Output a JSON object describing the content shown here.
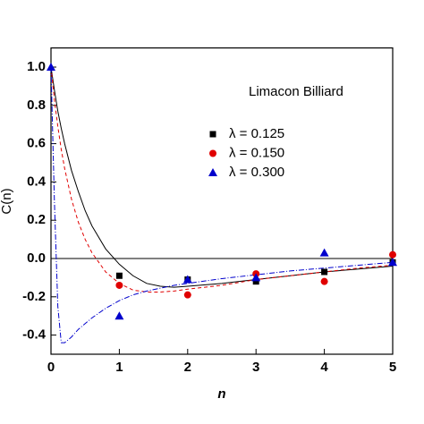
{
  "chart_data": {
    "type": "scatter",
    "annotation": "Limacon Billiard",
    "xlabel": "n",
    "ylabel": "C(n)",
    "xlim": [
      0,
      5
    ],
    "ylim": [
      -0.5,
      1.1
    ],
    "xticks": [
      0,
      1,
      2,
      3,
      4,
      5
    ],
    "yticks": [
      -0.4,
      -0.2,
      {
        "value": 0,
        "label": "0.0"
      },
      0.2,
      0.4,
      0.6,
      0.8,
      {
        "value": 1,
        "label": "1.0"
      }
    ],
    "hline": 0,
    "series": [
      {
        "name": "λ = 0.125",
        "color": "#000000",
        "marker": "square",
        "x": [
          1,
          2,
          3,
          4,
          5
        ],
        "values": [
          -0.09,
          -0.11,
          -0.12,
          -0.07,
          -0.02
        ]
      },
      {
        "name": "λ = 0.150",
        "color": "#e00000",
        "marker": "circle",
        "x": [
          1,
          2,
          3,
          4,
          5
        ],
        "values": [
          -0.14,
          -0.19,
          -0.08,
          -0.12,
          0.02
        ]
      },
      {
        "name": "λ = 0.300",
        "color": "#0000cc",
        "marker": "triangle",
        "x": [
          0,
          1,
          2,
          3,
          4,
          5
        ],
        "values": [
          1.0,
          -0.3,
          -0.11,
          -0.1,
          0.03,
          -0.02
        ]
      }
    ],
    "fits": [
      {
        "color": "#000000",
        "dash": "none",
        "x": [
          0,
          0.05,
          0.1,
          0.15,
          0.2,
          0.3,
          0.4,
          0.5,
          0.6,
          0.8,
          1.0,
          1.2,
          1.4,
          1.6,
          1.8,
          2,
          2.5,
          3,
          3.5,
          4,
          4.5,
          5
        ],
        "values": [
          1.0,
          0.88,
          0.77,
          0.68,
          0.6,
          0.46,
          0.35,
          0.25,
          0.17,
          0.05,
          -0.03,
          -0.09,
          -0.13,
          -0.145,
          -0.15,
          -0.145,
          -0.13,
          -0.11,
          -0.09,
          -0.07,
          -0.055,
          -0.04
        ]
      },
      {
        "color": "#e00000",
        "dash": "4 3",
        "x": [
          0,
          0.05,
          0.1,
          0.15,
          0.2,
          0.3,
          0.4,
          0.5,
          0.6,
          0.8,
          1.0,
          1.2,
          1.4,
          1.6,
          1.8,
          2,
          2.5,
          3,
          3.5,
          4,
          4.5,
          5
        ],
        "values": [
          1.0,
          0.83,
          0.69,
          0.57,
          0.47,
          0.31,
          0.19,
          0.1,
          0.03,
          -0.07,
          -0.13,
          -0.165,
          -0.175,
          -0.175,
          -0.17,
          -0.16,
          -0.14,
          -0.11,
          -0.09,
          -0.07,
          -0.05,
          -0.035
        ]
      },
      {
        "color": "#0000cc",
        "dash": "6 2 1 2",
        "x": [
          0,
          0.05,
          0.1,
          0.15,
          0.2,
          0.3,
          0.4,
          0.5,
          0.6,
          0.8,
          1.0,
          1.2,
          1.4,
          1.6,
          1.8,
          2,
          2.5,
          3,
          3.5,
          4,
          4.5,
          5
        ],
        "values": [
          1.0,
          0.3,
          -0.25,
          -0.44,
          -0.44,
          -0.41,
          -0.37,
          -0.34,
          -0.31,
          -0.26,
          -0.22,
          -0.19,
          -0.17,
          -0.155,
          -0.14,
          -0.13,
          -0.105,
          -0.085,
          -0.065,
          -0.05,
          -0.035,
          -0.02
        ]
      }
    ]
  }
}
